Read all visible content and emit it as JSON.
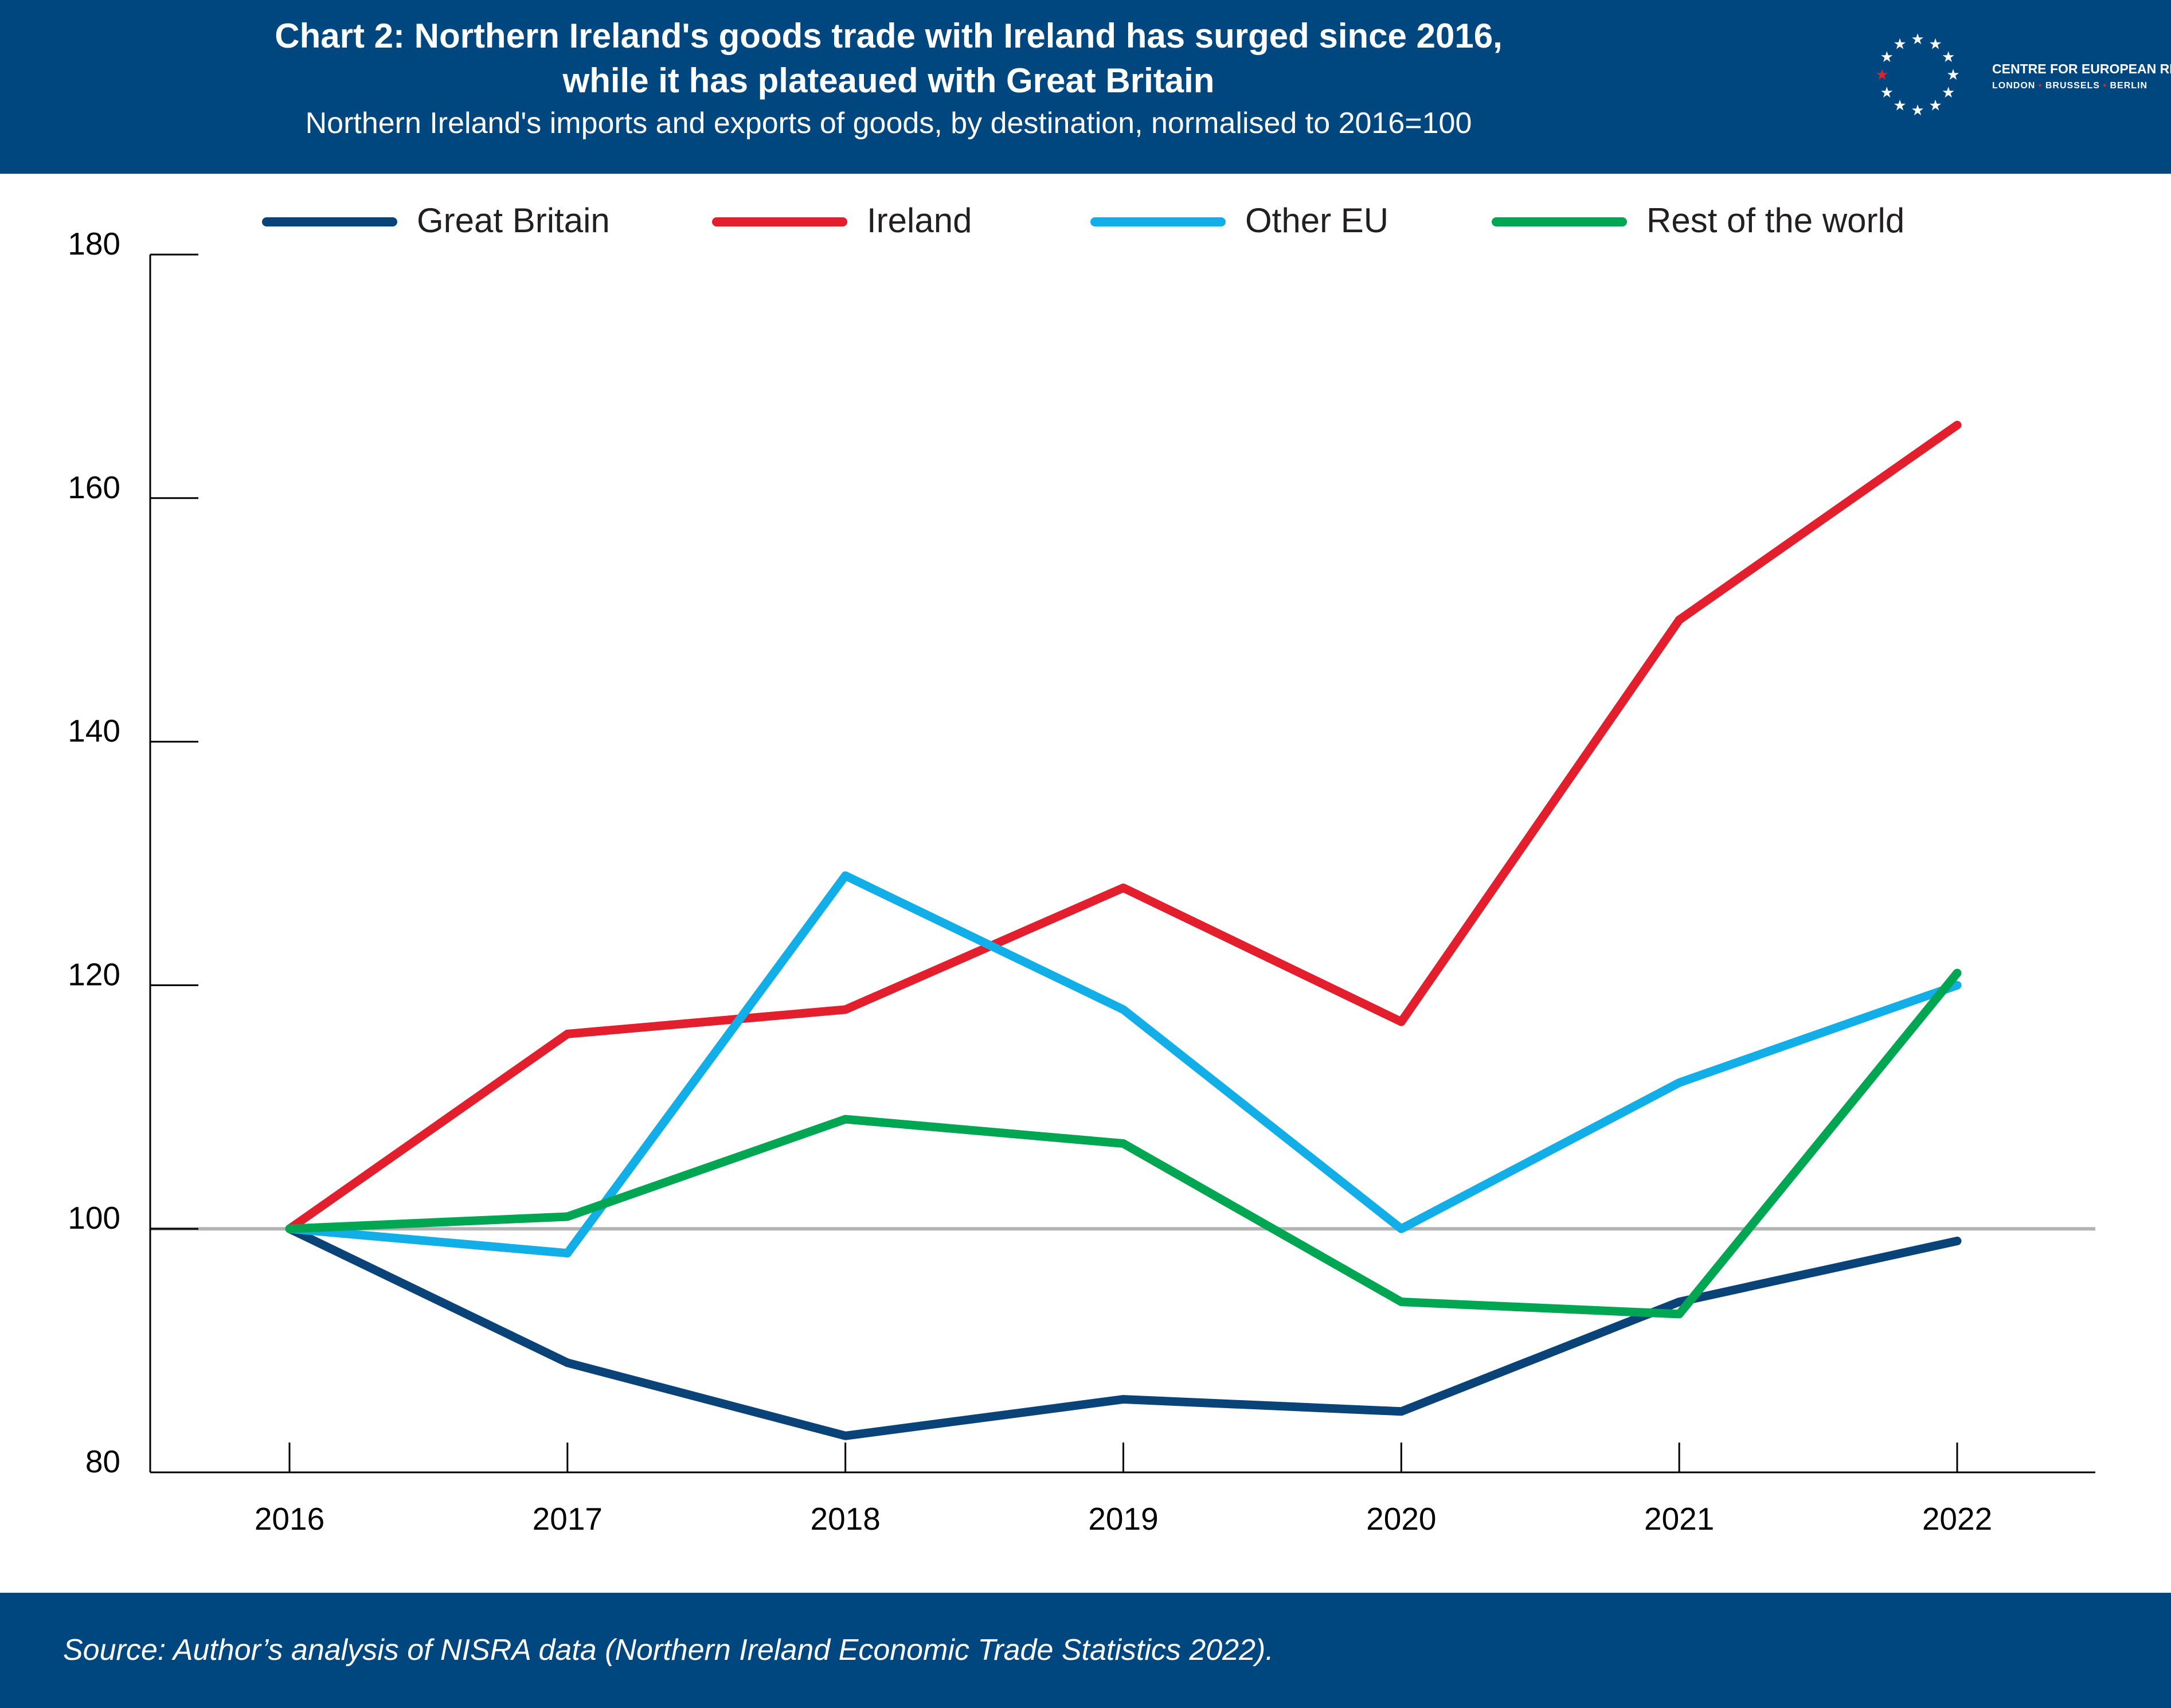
{
  "header": {
    "title_line1": "Chart 2: Northern Ireland's goods trade with Ireland has surged since 2016,",
    "title_line2": "while it has plateaued with Great Britain",
    "subtitle": "Northern Ireland's imports and exports of goods, by destination, normalised to 2016=100",
    "logo": {
      "name": "CENTRE FOR EUROPEAN REFORM",
      "city1": "LONDON",
      "city2": "BRUSSELS",
      "city3": "BERLIN",
      "star_color": "#ffffff",
      "accent_color": "#e3222b"
    },
    "background": "#00467f"
  },
  "footer": {
    "source": "Source: Author’s analysis of NISRA data (Northern Ireland Economic Trade Statistics 2022)."
  },
  "chart_data": {
    "type": "line",
    "title": "Chart 2: Northern Ireland's goods trade with Ireland has surged since 2016, while it has plateaued with Great Britain",
    "subtitle": "Northern Ireland's imports and exports of goods, by destination, normalised to 2016=100",
    "x": [
      "2016",
      "2017",
      "2018",
      "2019",
      "2020",
      "2021",
      "2022"
    ],
    "ylim": [
      80,
      180
    ],
    "yticks": [
      80,
      100,
      120,
      140,
      160,
      180
    ],
    "reference_line": {
      "value": 100,
      "color": "#b3b3b3"
    },
    "grid": false,
    "legend_position": "top",
    "series": [
      {
        "name": "Great Britain",
        "color": "#0a4378",
        "values": [
          100,
          89,
          83,
          86,
          85,
          94,
          99
        ]
      },
      {
        "name": "Ireland",
        "color": "#e31e2d",
        "values": [
          100,
          116,
          118,
          128,
          117,
          150,
          166
        ]
      },
      {
        "name": "Other EU",
        "color": "#12aee7",
        "values": [
          100,
          98,
          129,
          118,
          100,
          112,
          120
        ]
      },
      {
        "name": "Rest of the world",
        "color": "#00a651",
        "values": [
          100,
          101,
          109,
          107,
          94,
          93,
          121
        ]
      }
    ]
  }
}
